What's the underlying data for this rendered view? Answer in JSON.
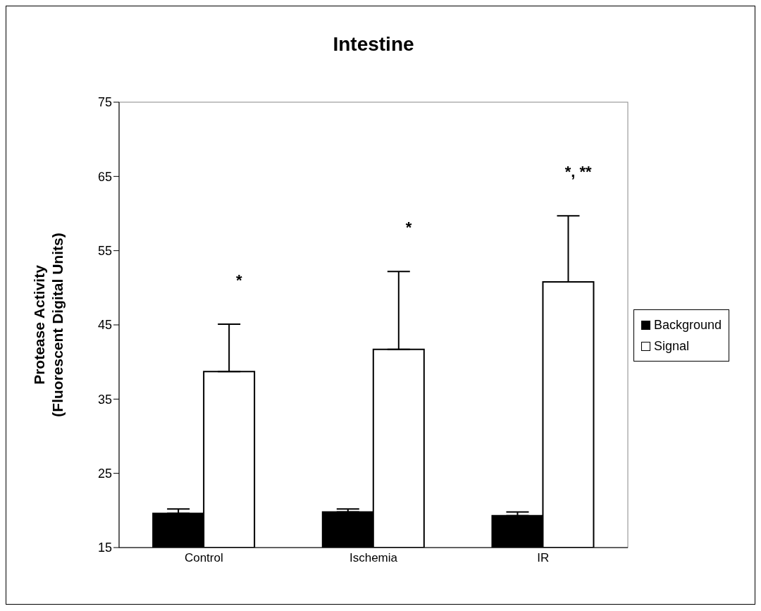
{
  "chart_data": {
    "type": "bar",
    "title": "Intestine",
    "ylabel": "Protease Activity\n(Fluorescent Digital Units)",
    "categories": [
      "Control",
      "Ischemia",
      "IR"
    ],
    "series": [
      {
        "name": "Background",
        "color": "#000000",
        "values": [
          19.6,
          19.8,
          19.3
        ],
        "errors": [
          [
            19.6,
            20.2
          ],
          [
            19.8,
            20.2
          ],
          [
            19.3,
            19.8
          ]
        ]
      },
      {
        "name": "Signal",
        "color": "#ffffff",
        "values": [
          38.7,
          41.7,
          50.8
        ],
        "errors": [
          [
            38.7,
            45.1
          ],
          [
            41.7,
            52.2
          ],
          [
            50.8,
            59.7
          ]
        ]
      }
    ],
    "ylim": [
      15,
      75
    ],
    "yticks": [
      15,
      25,
      35,
      45,
      55,
      65,
      75
    ],
    "grid": false,
    "legend": "right",
    "annotations": [
      "*",
      "*",
      "*, **"
    ]
  }
}
